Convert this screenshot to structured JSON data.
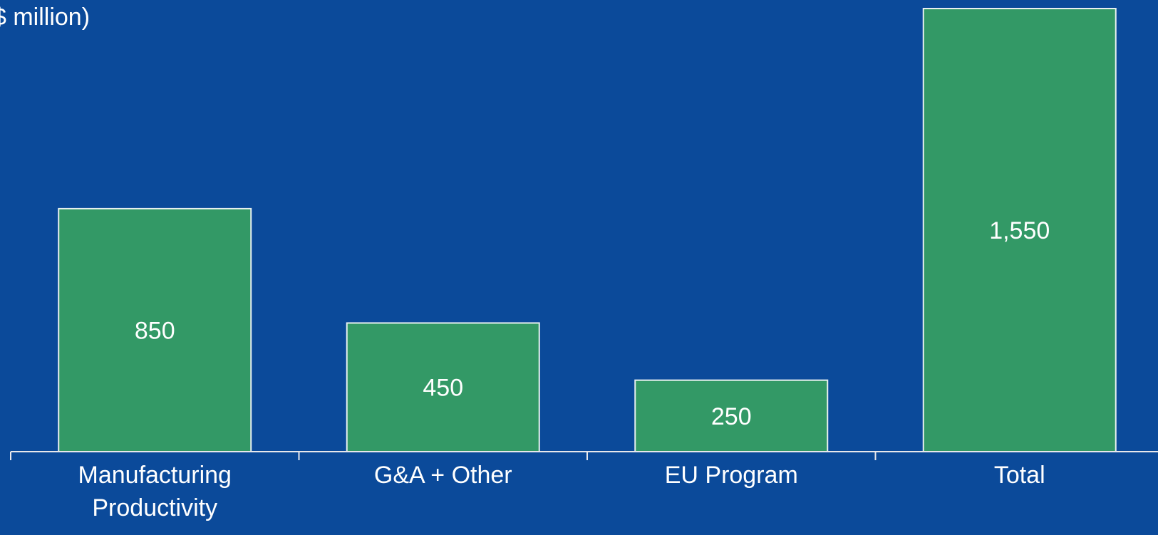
{
  "unit_label": "$ million)",
  "colors": {
    "background": "#0b4a9a",
    "bar_fill": "#339966",
    "bar_stroke": "#e8f0f0",
    "axis": "#e8e8ec",
    "text": "#ffffff"
  },
  "chart_data": {
    "type": "bar",
    "categories": [
      "Manufacturing Productivity",
      "G&A + Other",
      "EU Program",
      "Total"
    ],
    "values": [
      850,
      450,
      250,
      1550
    ],
    "data_labels": [
      "850",
      "450",
      "250",
      "1,550"
    ],
    "title": "",
    "xlabel": "",
    "ylabel": "$ million)",
    "ylim": [
      0,
      1550
    ],
    "grid": false,
    "legend": "none"
  }
}
